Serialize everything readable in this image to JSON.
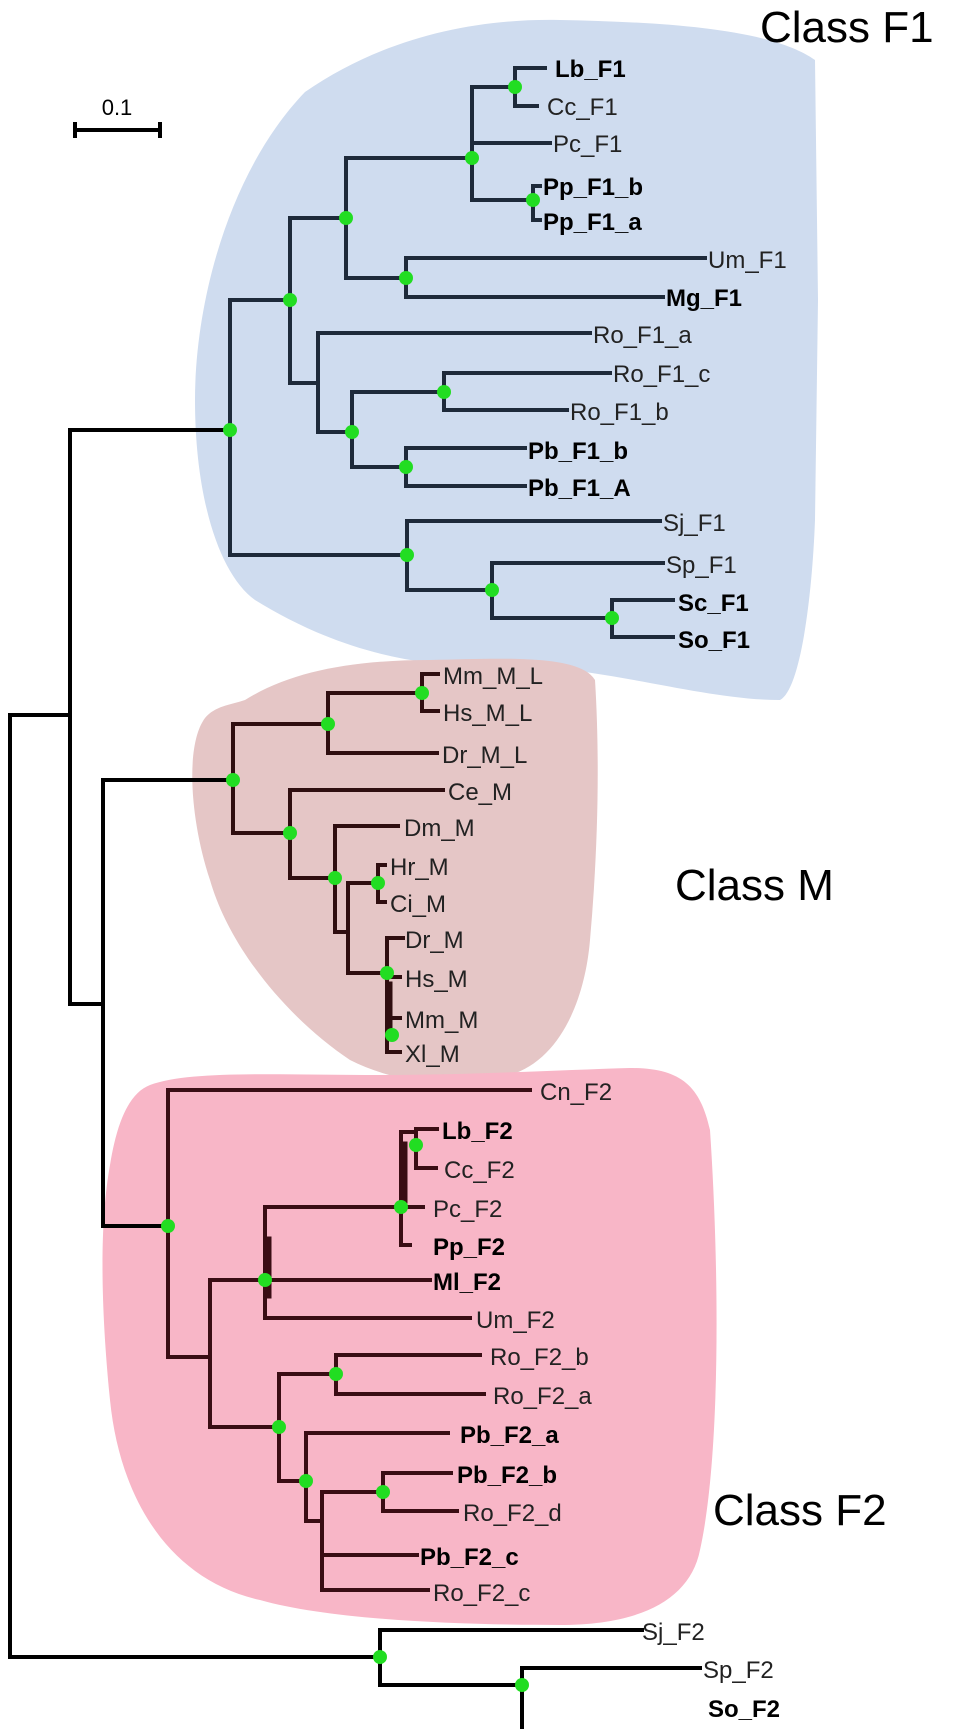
{
  "scale_bar": {
    "label": "0.1"
  },
  "class_labels": {
    "f1": "Class F1",
    "m": "Class M",
    "f2": "Class F2"
  },
  "colors": {
    "f1_region": "#cfdcef",
    "m_region": "#e5c6c6",
    "f2_region": "#f8b6c7",
    "f1_branch": "#1e2a3a",
    "m_branch": "#2f0e10",
    "f2_branch": "#3a0d14",
    "base_branch": "#000000",
    "node": "#22dd22"
  },
  "leaves": {
    "lb_f1": "Lb_F1",
    "cc_f1": "Cc_F1",
    "pc_f1": "Pc_F1",
    "pp_f1_b": "Pp_F1_b",
    "pp_f1_a": "Pp_F1_a",
    "um_f1": "Um_F1",
    "mg_f1": "Mg_F1",
    "ro_f1_a": "Ro_F1_a",
    "ro_f1_c": "Ro_F1_c",
    "ro_f1_b": "Ro_F1_b",
    "pb_f1_b": "Pb_F1_b",
    "pb_f1_a": "Pb_F1_A",
    "sj_f1": "Sj_F1",
    "sp_f1": "Sp_F1",
    "sc_f1": "Sc_F1",
    "so_f1": "So_F1",
    "mm_m_l": "Mm_M_L",
    "hs_m_l": "Hs_M_L",
    "dr_m_l": "Dr_M_L",
    "ce_m": "Ce_M",
    "dm_m": "Dm_M",
    "hr_m": "Hr_M",
    "ci_m": "Ci_M",
    "dr_m": "Dr_M",
    "hs_m": "Hs_M",
    "mm_m": "Mm_M",
    "xl_m": "Xl_M",
    "cn_f2": "Cn_F2",
    "lb_f2": "Lb_F2",
    "cc_f2": "Cc_F2",
    "pc_f2": "Pc_F2",
    "pp_f2": "Pp_F2",
    "ml_f2": "Ml_F2",
    "um_f2": "Um_F2",
    "ro_f2_b": "Ro_F2_b",
    "ro_f2_a": "Ro_F2_a",
    "pb_f2_a": "Pb_F2_a",
    "pb_f2_b": "Pb_F2_b",
    "ro_f2_d": "Ro_F2_d",
    "pb_f2_c": "Pb_F2_c",
    "ro_f2_c": "Ro_F2_c",
    "sj_f2": "Sj_F2",
    "sp_f2": "Sp_F2",
    "so_f2": "So_F2"
  }
}
